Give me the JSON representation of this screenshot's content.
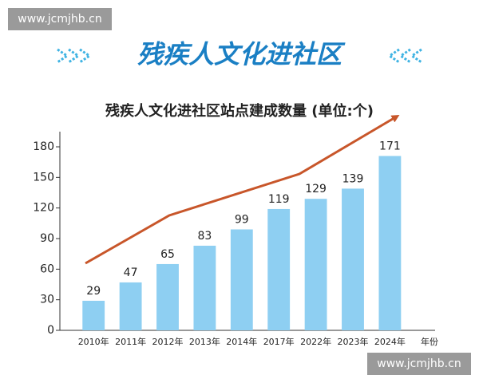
{
  "watermark": [
    "www.jcmjhb.cn",
    "www.jcmjhb.cn"
  ],
  "banner_title": "残疾人文化进社区",
  "chart_data": {
    "type": "bar",
    "title": "残疾人文化进社区站点建成数量 (单位:个)",
    "x_label": "年份",
    "categories": [
      "2010年",
      "2011年",
      "2012年",
      "2013年",
      "2014年",
      "2017年",
      "2022年",
      "2023年",
      "2024年"
    ],
    "values": [
      29,
      47,
      65,
      83,
      99,
      119,
      129,
      139,
      171
    ],
    "color": "#8ecff2",
    "ylim": [
      0,
      180
    ],
    "yticks": [
      0,
      30,
      60,
      90,
      120,
      150,
      180
    ],
    "grid": false
  }
}
